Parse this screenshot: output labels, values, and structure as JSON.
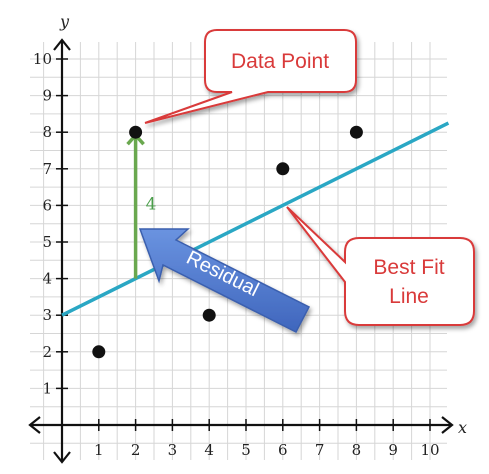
{
  "chart_data": {
    "type": "scatter",
    "title": "",
    "xlabel": "x",
    "ylabel": "y",
    "xlim": [
      0,
      10
    ],
    "ylim": [
      0,
      10
    ],
    "grid": true,
    "x_ticks": [
      "1",
      "2",
      "3",
      "4",
      "5",
      "6",
      "7",
      "8",
      "9",
      "10"
    ],
    "y_ticks": [
      "1",
      "2",
      "3",
      "4",
      "5",
      "6",
      "7",
      "8",
      "9",
      "10"
    ],
    "points": [
      {
        "x": 1,
        "y": 2
      },
      {
        "x": 2,
        "y": 8
      },
      {
        "x": 4,
        "y": 3
      },
      {
        "x": 6,
        "y": 7
      },
      {
        "x": 8,
        "y": 8
      }
    ],
    "fit_line": {
      "slope": 0.5,
      "intercept": 3,
      "color": "#2aa7c4"
    },
    "residual": {
      "x": 2,
      "y_from": 4,
      "y_to": 8,
      "value_label": "4",
      "color": "#6aa84f"
    },
    "annotations": {
      "data_point": "Data Point",
      "best_fit_line": [
        "Best Fit",
        "Line"
      ],
      "residual": "Residual"
    },
    "colors": {
      "point": "#111111",
      "callout_border": "#d93a3a",
      "callout_text": "#d93a3a",
      "residual_arrow": "#4a74c9",
      "grid": "#d6d6d6",
      "axis": "#111111"
    }
  }
}
